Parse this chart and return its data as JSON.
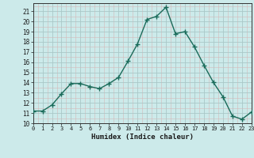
{
  "x": [
    0,
    1,
    2,
    3,
    4,
    5,
    6,
    7,
    8,
    9,
    10,
    11,
    12,
    13,
    14,
    15,
    16,
    17,
    18,
    19,
    20,
    21,
    22,
    23
  ],
  "y": [
    11.2,
    11.2,
    11.8,
    12.9,
    13.9,
    13.9,
    13.6,
    13.4,
    13.9,
    14.5,
    16.1,
    17.8,
    20.2,
    20.5,
    21.4,
    18.8,
    19.0,
    17.5,
    15.7,
    14.0,
    12.6,
    10.7,
    10.4,
    11.1
  ],
  "xlim": [
    0,
    23
  ],
  "ylim": [
    10,
    21.8
  ],
  "yticks": [
    10,
    11,
    12,
    13,
    14,
    15,
    16,
    17,
    18,
    19,
    20,
    21
  ],
  "xticks": [
    0,
    1,
    2,
    3,
    4,
    5,
    6,
    7,
    8,
    9,
    10,
    11,
    12,
    13,
    14,
    15,
    16,
    17,
    18,
    19,
    20,
    21,
    22,
    23
  ],
  "xlabel": "Humidex (Indice chaleur)",
  "line_color": "#1a6b5a",
  "marker": "+",
  "marker_size": 4,
  "bg_color": "#cceaea",
  "grid_major_color": "#aac8c8",
  "grid_minor_color": "#d4b8b8"
}
